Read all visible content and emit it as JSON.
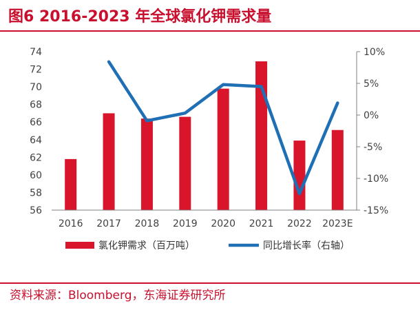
{
  "header": {
    "title": "图6  2016-2023 年全球氯化钾需求量"
  },
  "footer": {
    "source": "资料来源：Bloomberg，东海证券研究所"
  },
  "colors": {
    "accent": "#c8102e",
    "bar": "#d9152b",
    "line": "#1f6fb5",
    "axis": "#7f7f7f"
  },
  "chart_data": {
    "type": "bar+line",
    "categories": [
      "2016",
      "2017",
      "2018",
      "2019",
      "2020",
      "2021",
      "2022",
      "2023E"
    ],
    "series": [
      {
        "name": "氯化钾需求（百万吨）",
        "type": "bar",
        "axis": "left",
        "values": [
          61.8,
          67.0,
          66.4,
          66.6,
          69.8,
          72.9,
          63.9,
          65.1
        ]
      },
      {
        "name": "同比增长率（右轴）",
        "type": "line",
        "axis": "right",
        "values": [
          null,
          8.4,
          -0.9,
          0.3,
          4.8,
          4.5,
          -12.4,
          1.9
        ]
      }
    ],
    "left_axis": {
      "ylim": [
        56,
        74
      ],
      "ticks": [
        "56",
        "58",
        "60",
        "62",
        "64",
        "66",
        "68",
        "70",
        "72",
        "74"
      ]
    },
    "right_axis": {
      "ylim": [
        -15,
        10
      ],
      "ticks": [
        "-15%",
        "-10%",
        "-5%",
        "0%",
        "5%",
        "10%"
      ]
    },
    "legend": [
      "氯化钾需求（百万吨）",
      "同比增长率（右轴）"
    ],
    "legend_position": "bottom"
  }
}
